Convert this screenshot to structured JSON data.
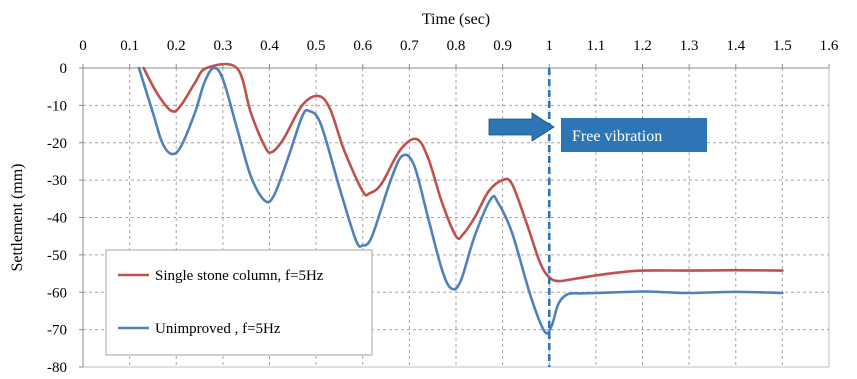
{
  "chart_data": {
    "type": "line",
    "xlabel": "Time (sec)",
    "ylabel": "Settlement (mm)",
    "x_axis_position": "top",
    "xlim": [
      0,
      1.6
    ],
    "ylim": [
      -80,
      0
    ],
    "x_ticks": [
      0,
      0.1,
      0.2,
      0.3,
      0.4,
      0.5,
      0.6,
      0.7,
      0.8,
      0.9,
      1,
      1.1,
      1.2,
      1.3,
      1.4,
      1.5,
      1.6
    ],
    "x_tick_labels": [
      "0",
      "0.1",
      "0.2",
      "0.3",
      "0.4",
      "0.5",
      "0.6",
      "0.7",
      "0.8",
      "0.9",
      "1",
      "1.1",
      "1.2",
      "1.3",
      "1.4",
      "1.5",
      "1.6"
    ],
    "y_ticks": [
      0,
      -10,
      -20,
      -30,
      -40,
      -50,
      -60,
      -70,
      -80
    ],
    "y_tick_labels": [
      "0",
      "-10",
      "-20",
      "-30",
      "-40",
      "-50",
      "-60",
      "-70",
      "-80"
    ],
    "grid": {
      "vertical": true,
      "horizontal": true,
      "style": "dashed"
    },
    "legend_position": "bottom-left",
    "series": [
      {
        "name": "Single stone column, f=5Hz",
        "color": "#c0504d",
        "points": [
          [
            0.13,
            0
          ],
          [
            0.16,
            -7
          ],
          [
            0.19,
            -11.5
          ],
          [
            0.21,
            -10
          ],
          [
            0.24,
            -4
          ],
          [
            0.265,
            0
          ],
          [
            0.33,
            0
          ],
          [
            0.36,
            -12
          ],
          [
            0.39,
            -21
          ],
          [
            0.405,
            -22.5
          ],
          [
            0.43,
            -19
          ],
          [
            0.47,
            -10
          ],
          [
            0.505,
            -7.5
          ],
          [
            0.53,
            -11
          ],
          [
            0.56,
            -22
          ],
          [
            0.6,
            -33
          ],
          [
            0.615,
            -33.5
          ],
          [
            0.64,
            -31
          ],
          [
            0.68,
            -22
          ],
          [
            0.715,
            -19
          ],
          [
            0.74,
            -24
          ],
          [
            0.77,
            -36
          ],
          [
            0.8,
            -45
          ],
          [
            0.815,
            -44.5
          ],
          [
            0.84,
            -40
          ],
          [
            0.87,
            -33
          ],
          [
            0.9,
            -30
          ],
          [
            0.92,
            -31
          ],
          [
            0.95,
            -41
          ],
          [
            0.98,
            -52
          ],
          [
            1.0,
            -56
          ],
          [
            1.02,
            -57
          ],
          [
            1.05,
            -56.5
          ],
          [
            1.1,
            -55.5
          ],
          [
            1.15,
            -54.7
          ],
          [
            1.2,
            -54.2
          ],
          [
            1.3,
            -54.2
          ],
          [
            1.4,
            -54.1
          ],
          [
            1.5,
            -54.2
          ]
        ]
      },
      {
        "name": "Unimproved , f=5Hz",
        "color": "#4f81bd",
        "points": [
          [
            0.12,
            0
          ],
          [
            0.15,
            -12
          ],
          [
            0.17,
            -20
          ],
          [
            0.19,
            -23
          ],
          [
            0.21,
            -21
          ],
          [
            0.24,
            -12
          ],
          [
            0.26,
            -4
          ],
          [
            0.28,
            0
          ],
          [
            0.3,
            -3
          ],
          [
            0.33,
            -16
          ],
          [
            0.36,
            -29
          ],
          [
            0.39,
            -35.5
          ],
          [
            0.41,
            -34
          ],
          [
            0.44,
            -24
          ],
          [
            0.47,
            -13
          ],
          [
            0.485,
            -11.5
          ],
          [
            0.51,
            -15
          ],
          [
            0.55,
            -32
          ],
          [
            0.585,
            -46
          ],
          [
            0.6,
            -47.5
          ],
          [
            0.62,
            -45
          ],
          [
            0.66,
            -30
          ],
          [
            0.685,
            -23.5
          ],
          [
            0.71,
            -26
          ],
          [
            0.74,
            -40
          ],
          [
            0.77,
            -54
          ],
          [
            0.79,
            -59
          ],
          [
            0.81,
            -57
          ],
          [
            0.84,
            -45
          ],
          [
            0.875,
            -35
          ],
          [
            0.89,
            -36
          ],
          [
            0.92,
            -44
          ],
          [
            0.96,
            -61
          ],
          [
            0.99,
            -70.5
          ],
          [
            1.005,
            -69
          ],
          [
            1.02,
            -63
          ],
          [
            1.04,
            -60.5
          ],
          [
            1.07,
            -60.3
          ],
          [
            1.1,
            -60.2
          ],
          [
            1.2,
            -59.8
          ],
          [
            1.25,
            -60
          ],
          [
            1.3,
            -60.2
          ],
          [
            1.4,
            -59.9
          ],
          [
            1.5,
            -60.2
          ]
        ]
      }
    ],
    "vertical_marker": {
      "x": 1.0,
      "color": "#2e75b6",
      "style": "dashed"
    },
    "annotation": {
      "text": "Free vibration",
      "box_color": "#2e75b6",
      "arrow_color": "#2e75b6"
    }
  }
}
